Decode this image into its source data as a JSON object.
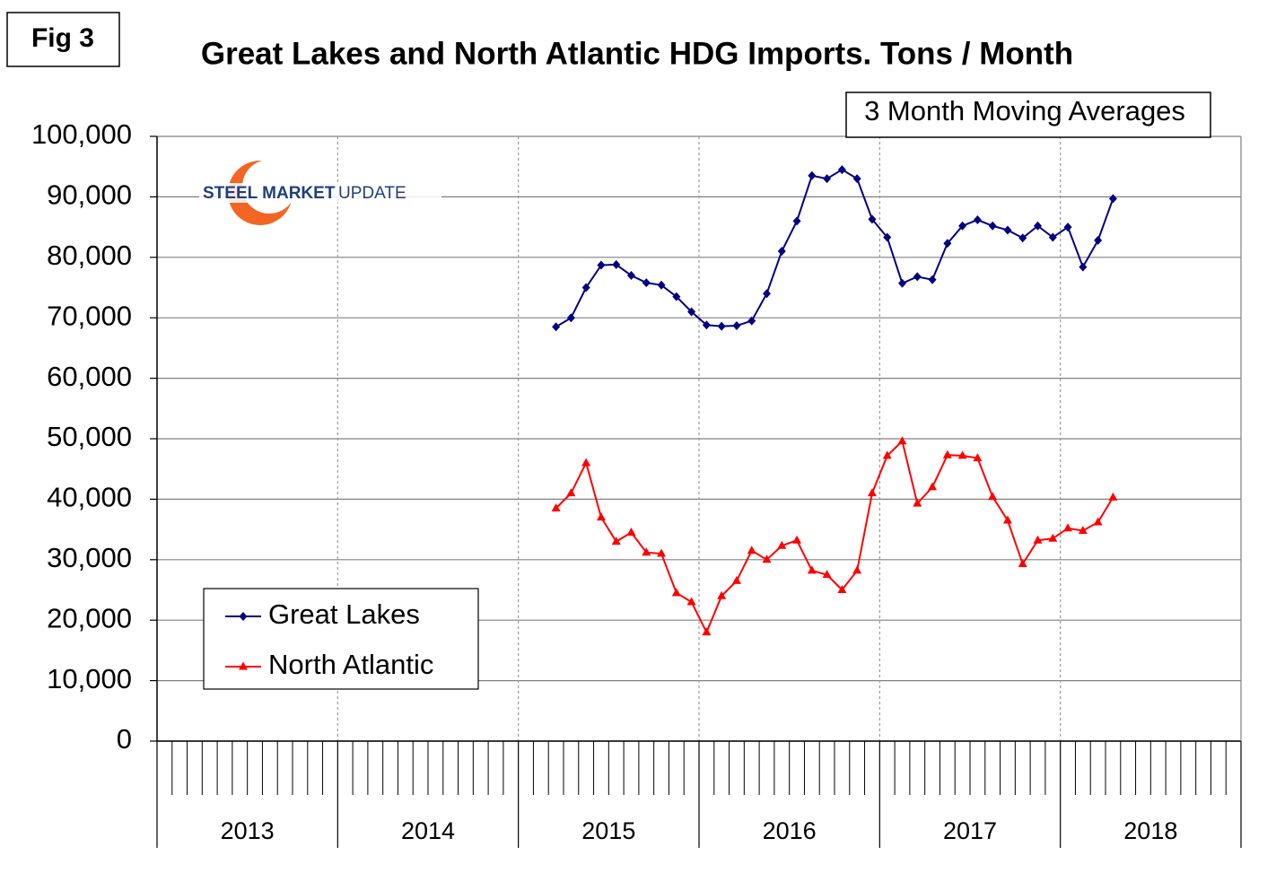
{
  "chart_data": {
    "type": "line",
    "figure_label": "Fig 3",
    "title": "Great Lakes and North Atlantic HDG Imports. Tons / Month",
    "annotation": "3 Month Moving Averages",
    "logo": {
      "bold": "STEEL MARKET",
      "light": "UPDATE"
    },
    "year_labels": [
      "2013",
      "2014",
      "2015",
      "2016",
      "2017",
      "2018"
    ],
    "categories": [
      null,
      null,
      null,
      null,
      null,
      null,
      null,
      null,
      null,
      null,
      null,
      null,
      null,
      null,
      null,
      null,
      null,
      null,
      null,
      null,
      null,
      null,
      null,
      null,
      null,
      null,
      null,
      null,
      null,
      null,
      null,
      null,
      null,
      null,
      null,
      null,
      null,
      null,
      null,
      null,
      null,
      null,
      null,
      null,
      null,
      null,
      null,
      null,
      null,
      null,
      null,
      null,
      null,
      null,
      null,
      null,
      null,
      null,
      null,
      null,
      null,
      null,
      null,
      null,
      null,
      null,
      null,
      null,
      null,
      null,
      null,
      null
    ],
    "series": [
      {
        "name": "Great Lakes",
        "color": "#000080",
        "marker": "diamond",
        "values": [
          null,
          null,
          null,
          null,
          null,
          null,
          null,
          null,
          null,
          null,
          null,
          null,
          null,
          null,
          null,
          null,
          null,
          null,
          null,
          null,
          null,
          null,
          null,
          null,
          null,
          null,
          68500,
          70000,
          75000,
          78700,
          78800,
          77000,
          75800,
          75400,
          73500,
          71000,
          68800,
          68600,
          68700,
          69500,
          74000,
          81000,
          86000,
          93500,
          93000,
          94500,
          93000,
          86300,
          83300,
          75700,
          76800,
          76300,
          82300,
          85200,
          86200,
          85200,
          84500,
          83200,
          85200,
          83300,
          85000,
          78400,
          82800,
          89700,
          null,
          null,
          null,
          null,
          null,
          null,
          null,
          null
        ]
      },
      {
        "name": "North Atlantic",
        "color": "#ff0000",
        "marker": "triangle",
        "values": [
          null,
          null,
          null,
          null,
          null,
          null,
          null,
          null,
          null,
          null,
          null,
          null,
          null,
          null,
          null,
          null,
          null,
          null,
          null,
          null,
          null,
          null,
          null,
          null,
          null,
          null,
          38500,
          41000,
          46000,
          37000,
          33000,
          34500,
          31200,
          31000,
          24500,
          23000,
          18000,
          24000,
          26500,
          31500,
          30000,
          32300,
          33200,
          28200,
          27500,
          25000,
          28200,
          41000,
          47200,
          49600,
          39300,
          42000,
          47300,
          47200,
          46800,
          40400,
          36500,
          29300,
          33200,
          33500,
          35200,
          34800,
          36200,
          40300,
          null,
          null,
          null,
          null,
          null,
          null,
          null,
          null
        ]
      }
    ],
    "ylim": [
      0,
      100000
    ],
    "yticks": [
      0,
      {
        "value": 10000,
        "label": "10,000"
      },
      {
        "value": 20000,
        "label": "20,000"
      },
      {
        "value": 30000,
        "label": "30,000"
      },
      {
        "value": 40000,
        "label": "40,000"
      },
      {
        "value": 50000,
        "label": "50,000"
      },
      {
        "value": 60000,
        "label": "60,000"
      },
      {
        "value": 70000,
        "label": "70,000"
      },
      {
        "value": 80000,
        "label": "80,000"
      },
      {
        "value": 90000,
        "label": "90,000"
      },
      {
        "value": 100000,
        "label": "100,000"
      }
    ],
    "grid": true,
    "legend": "lower left"
  }
}
